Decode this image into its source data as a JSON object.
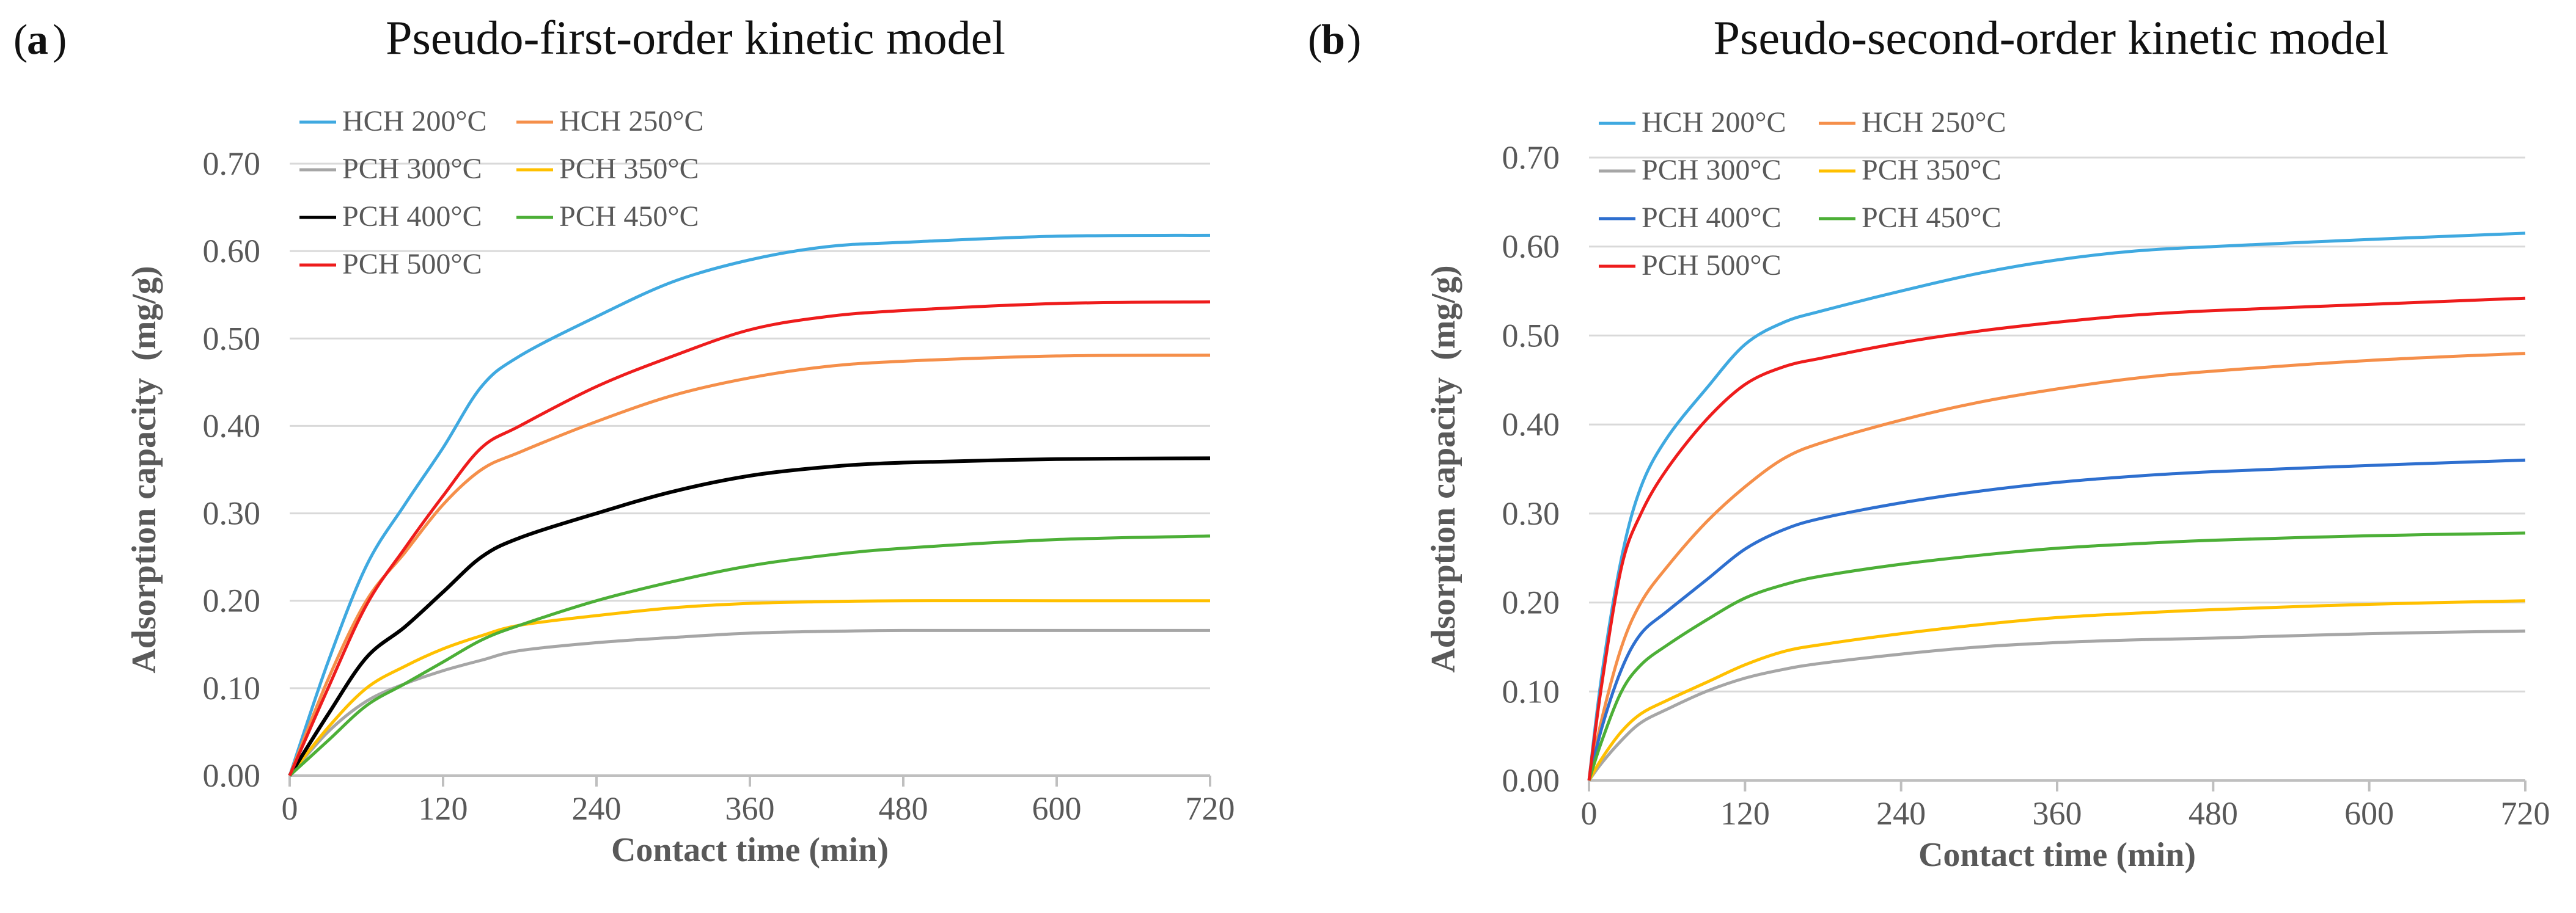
{
  "figure": {
    "panels": [
      {
        "letter": "a",
        "title": "Pseudo-first-order kinetic model"
      },
      {
        "letter": "b",
        "title": "Pseudo-second-order kinetic model"
      }
    ]
  },
  "chart_data": [
    {
      "type": "line",
      "panel_letter": "a",
      "title": "Pseudo-first-order kinetic model",
      "xlabel": "Contact time (min)",
      "ylabel": "Adsorption capacity  (mg/g)",
      "xlim": [
        0,
        720
      ],
      "ylim": [
        0,
        0.7
      ],
      "xticks": [
        0,
        120,
        240,
        360,
        480,
        600,
        720
      ],
      "yticks": [
        "0.00",
        "0.10",
        "0.20",
        "0.30",
        "0.40",
        "0.50",
        "0.60",
        "0.70"
      ],
      "grid": "horizontal",
      "legend_position": "top-left",
      "series": [
        {
          "name": "HCH 200°C",
          "color": "#3fa9e0",
          "points": [
            [
              0,
              0
            ],
            [
              30,
              0.13
            ],
            [
              60,
              0.24
            ],
            [
              90,
              0.31
            ],
            [
              120,
              0.375
            ],
            [
              150,
              0.445
            ],
            [
              180,
              0.48
            ],
            [
              240,
              0.525
            ],
            [
              300,
              0.565
            ],
            [
              360,
              0.59
            ],
            [
              420,
              0.605
            ],
            [
              480,
              0.61
            ],
            [
              600,
              0.617
            ],
            [
              720,
              0.618
            ]
          ]
        },
        {
          "name": "HCH 250°C",
          "color": "#f58f4a",
          "points": [
            [
              0,
              0
            ],
            [
              30,
              0.11
            ],
            [
              60,
              0.2
            ],
            [
              90,
              0.255
            ],
            [
              120,
              0.31
            ],
            [
              150,
              0.35
            ],
            [
              180,
              0.37
            ],
            [
              240,
              0.405
            ],
            [
              300,
              0.435
            ],
            [
              360,
              0.455
            ],
            [
              420,
              0.468
            ],
            [
              480,
              0.474
            ],
            [
              600,
              0.48
            ],
            [
              720,
              0.481
            ]
          ]
        },
        {
          "name": "PCH 300°C",
          "color": "#a6a6a6",
          "points": [
            [
              0,
              0
            ],
            [
              30,
              0.05
            ],
            [
              60,
              0.085
            ],
            [
              90,
              0.105
            ],
            [
              120,
              0.12
            ],
            [
              150,
              0.132
            ],
            [
              180,
              0.143
            ],
            [
              240,
              0.152
            ],
            [
              300,
              0.158
            ],
            [
              360,
              0.163
            ],
            [
              420,
              0.165
            ],
            [
              480,
              0.166
            ],
            [
              600,
              0.166
            ],
            [
              720,
              0.166
            ]
          ]
        },
        {
          "name": "PCH 350°C",
          "color": "#ffc000",
          "points": [
            [
              0,
              0
            ],
            [
              30,
              0.055
            ],
            [
              60,
              0.1
            ],
            [
              90,
              0.125
            ],
            [
              120,
              0.145
            ],
            [
              150,
              0.16
            ],
            [
              180,
              0.172
            ],
            [
              240,
              0.183
            ],
            [
              300,
              0.192
            ],
            [
              360,
              0.197
            ],
            [
              420,
              0.199
            ],
            [
              480,
              0.2
            ],
            [
              600,
              0.2
            ],
            [
              720,
              0.2
            ]
          ]
        },
        {
          "name": "PCH 400°C",
          "color": "#000000",
          "points": [
            [
              0,
              0
            ],
            [
              30,
              0.07
            ],
            [
              60,
              0.135
            ],
            [
              90,
              0.17
            ],
            [
              120,
              0.21
            ],
            [
              150,
              0.25
            ],
            [
              180,
              0.272
            ],
            [
              240,
              0.3
            ],
            [
              300,
              0.325
            ],
            [
              360,
              0.343
            ],
            [
              420,
              0.353
            ],
            [
              480,
              0.358
            ],
            [
              600,
              0.362
            ],
            [
              720,
              0.363
            ]
          ]
        },
        {
          "name": "PCH 450°C",
          "color": "#4caf37",
          "points": [
            [
              0,
              0
            ],
            [
              30,
              0.04
            ],
            [
              60,
              0.08
            ],
            [
              90,
              0.105
            ],
            [
              120,
              0.13
            ],
            [
              150,
              0.155
            ],
            [
              180,
              0.172
            ],
            [
              240,
              0.2
            ],
            [
              300,
              0.222
            ],
            [
              360,
              0.24
            ],
            [
              420,
              0.252
            ],
            [
              480,
              0.26
            ],
            [
              600,
              0.27
            ],
            [
              720,
              0.274
            ]
          ]
        },
        {
          "name": "PCH 500°C",
          "color": "#ee1c1c",
          "points": [
            [
              0,
              0
            ],
            [
              30,
              0.1
            ],
            [
              60,
              0.195
            ],
            [
              90,
              0.26
            ],
            [
              120,
              0.32
            ],
            [
              150,
              0.375
            ],
            [
              180,
              0.4
            ],
            [
              240,
              0.445
            ],
            [
              300,
              0.48
            ],
            [
              360,
              0.51
            ],
            [
              420,
              0.525
            ],
            [
              480,
              0.532
            ],
            [
              600,
              0.54
            ],
            [
              720,
              0.542
            ]
          ]
        }
      ]
    },
    {
      "type": "line",
      "panel_letter": "b",
      "title": "Pseudo-second-order kinetic model",
      "xlabel": "Contact time (min)",
      "ylabel": "Adsorption capacity  (mg/g)",
      "xlim": [
        0,
        720
      ],
      "ylim": [
        0,
        0.7
      ],
      "xticks": [
        0,
        120,
        240,
        360,
        480,
        600,
        720
      ],
      "yticks": [
        "0.00",
        "0.10",
        "0.20",
        "0.30",
        "0.40",
        "0.50",
        "0.60",
        "0.70"
      ],
      "grid": "horizontal",
      "legend_position": "top-left",
      "series": [
        {
          "name": "HCH 200°C",
          "color": "#3fa9e0",
          "points": [
            [
              0,
              0
            ],
            [
              10,
              0.12
            ],
            [
              25,
              0.25
            ],
            [
              40,
              0.33
            ],
            [
              60,
              0.385
            ],
            [
              90,
              0.44
            ],
            [
              120,
              0.49
            ],
            [
              150,
              0.515
            ],
            [
              180,
              0.528
            ],
            [
              240,
              0.55
            ],
            [
              300,
              0.57
            ],
            [
              360,
              0.585
            ],
            [
              420,
              0.595
            ],
            [
              480,
              0.6
            ],
            [
              600,
              0.608
            ],
            [
              720,
              0.615
            ]
          ]
        },
        {
          "name": "HCH 250°C",
          "color": "#f58f4a",
          "points": [
            [
              0,
              0
            ],
            [
              10,
              0.07
            ],
            [
              25,
              0.15
            ],
            [
              40,
              0.2
            ],
            [
              60,
              0.24
            ],
            [
              90,
              0.29
            ],
            [
              120,
              0.33
            ],
            [
              150,
              0.362
            ],
            [
              180,
              0.38
            ],
            [
              240,
              0.405
            ],
            [
              300,
              0.425
            ],
            [
              360,
              0.44
            ],
            [
              420,
              0.452
            ],
            [
              480,
              0.46
            ],
            [
              600,
              0.472
            ],
            [
              720,
              0.48
            ]
          ]
        },
        {
          "name": "PCH 300°C",
          "color": "#a6a6a6",
          "points": [
            [
              0,
              0
            ],
            [
              10,
              0.02
            ],
            [
              25,
              0.045
            ],
            [
              40,
              0.065
            ],
            [
              60,
              0.08
            ],
            [
              90,
              0.1
            ],
            [
              120,
              0.115
            ],
            [
              150,
              0.125
            ],
            [
              180,
              0.132
            ],
            [
              240,
              0.142
            ],
            [
              300,
              0.15
            ],
            [
              360,
              0.155
            ],
            [
              420,
              0.158
            ],
            [
              480,
              0.16
            ],
            [
              600,
              0.165
            ],
            [
              720,
              0.168
            ]
          ]
        },
        {
          "name": "PCH 350°C",
          "color": "#ffc000",
          "points": [
            [
              0,
              0
            ],
            [
              10,
              0.025
            ],
            [
              25,
              0.055
            ],
            [
              40,
              0.075
            ],
            [
              60,
              0.09
            ],
            [
              90,
              0.11
            ],
            [
              120,
              0.13
            ],
            [
              150,
              0.145
            ],
            [
              180,
              0.153
            ],
            [
              240,
              0.165
            ],
            [
              300,
              0.175
            ],
            [
              360,
              0.183
            ],
            [
              420,
              0.188
            ],
            [
              480,
              0.192
            ],
            [
              600,
              0.198
            ],
            [
              720,
              0.202
            ]
          ]
        },
        {
          "name": "PCH 400°C",
          "color": "#2e6fcf",
          "points": [
            [
              0,
              0
            ],
            [
              10,
              0.06
            ],
            [
              25,
              0.125
            ],
            [
              40,
              0.165
            ],
            [
              60,
              0.19
            ],
            [
              90,
              0.225
            ],
            [
              120,
              0.26
            ],
            [
              150,
              0.282
            ],
            [
              180,
              0.295
            ],
            [
              240,
              0.312
            ],
            [
              300,
              0.325
            ],
            [
              360,
              0.335
            ],
            [
              420,
              0.342
            ],
            [
              480,
              0.347
            ],
            [
              600,
              0.354
            ],
            [
              720,
              0.36
            ]
          ]
        },
        {
          "name": "PCH 450°C",
          "color": "#4caf37",
          "points": [
            [
              0,
              0
            ],
            [
              10,
              0.045
            ],
            [
              25,
              0.1
            ],
            [
              40,
              0.13
            ],
            [
              60,
              0.152
            ],
            [
              90,
              0.18
            ],
            [
              120,
              0.205
            ],
            [
              150,
              0.22
            ],
            [
              180,
              0.23
            ],
            [
              240,
              0.243
            ],
            [
              300,
              0.253
            ],
            [
              360,
              0.261
            ],
            [
              420,
              0.266
            ],
            [
              480,
              0.27
            ],
            [
              600,
              0.275
            ],
            [
              720,
              0.278
            ]
          ]
        },
        {
          "name": "PCH 500°C",
          "color": "#ee1c1c",
          "points": [
            [
              0,
              0
            ],
            [
              10,
              0.11
            ],
            [
              25,
              0.24
            ],
            [
              40,
              0.3
            ],
            [
              60,
              0.35
            ],
            [
              90,
              0.405
            ],
            [
              120,
              0.445
            ],
            [
              150,
              0.465
            ],
            [
              180,
              0.475
            ],
            [
              240,
              0.492
            ],
            [
              300,
              0.505
            ],
            [
              360,
              0.515
            ],
            [
              420,
              0.523
            ],
            [
              480,
              0.528
            ],
            [
              600,
              0.535
            ],
            [
              720,
              0.542
            ]
          ]
        }
      ]
    }
  ]
}
